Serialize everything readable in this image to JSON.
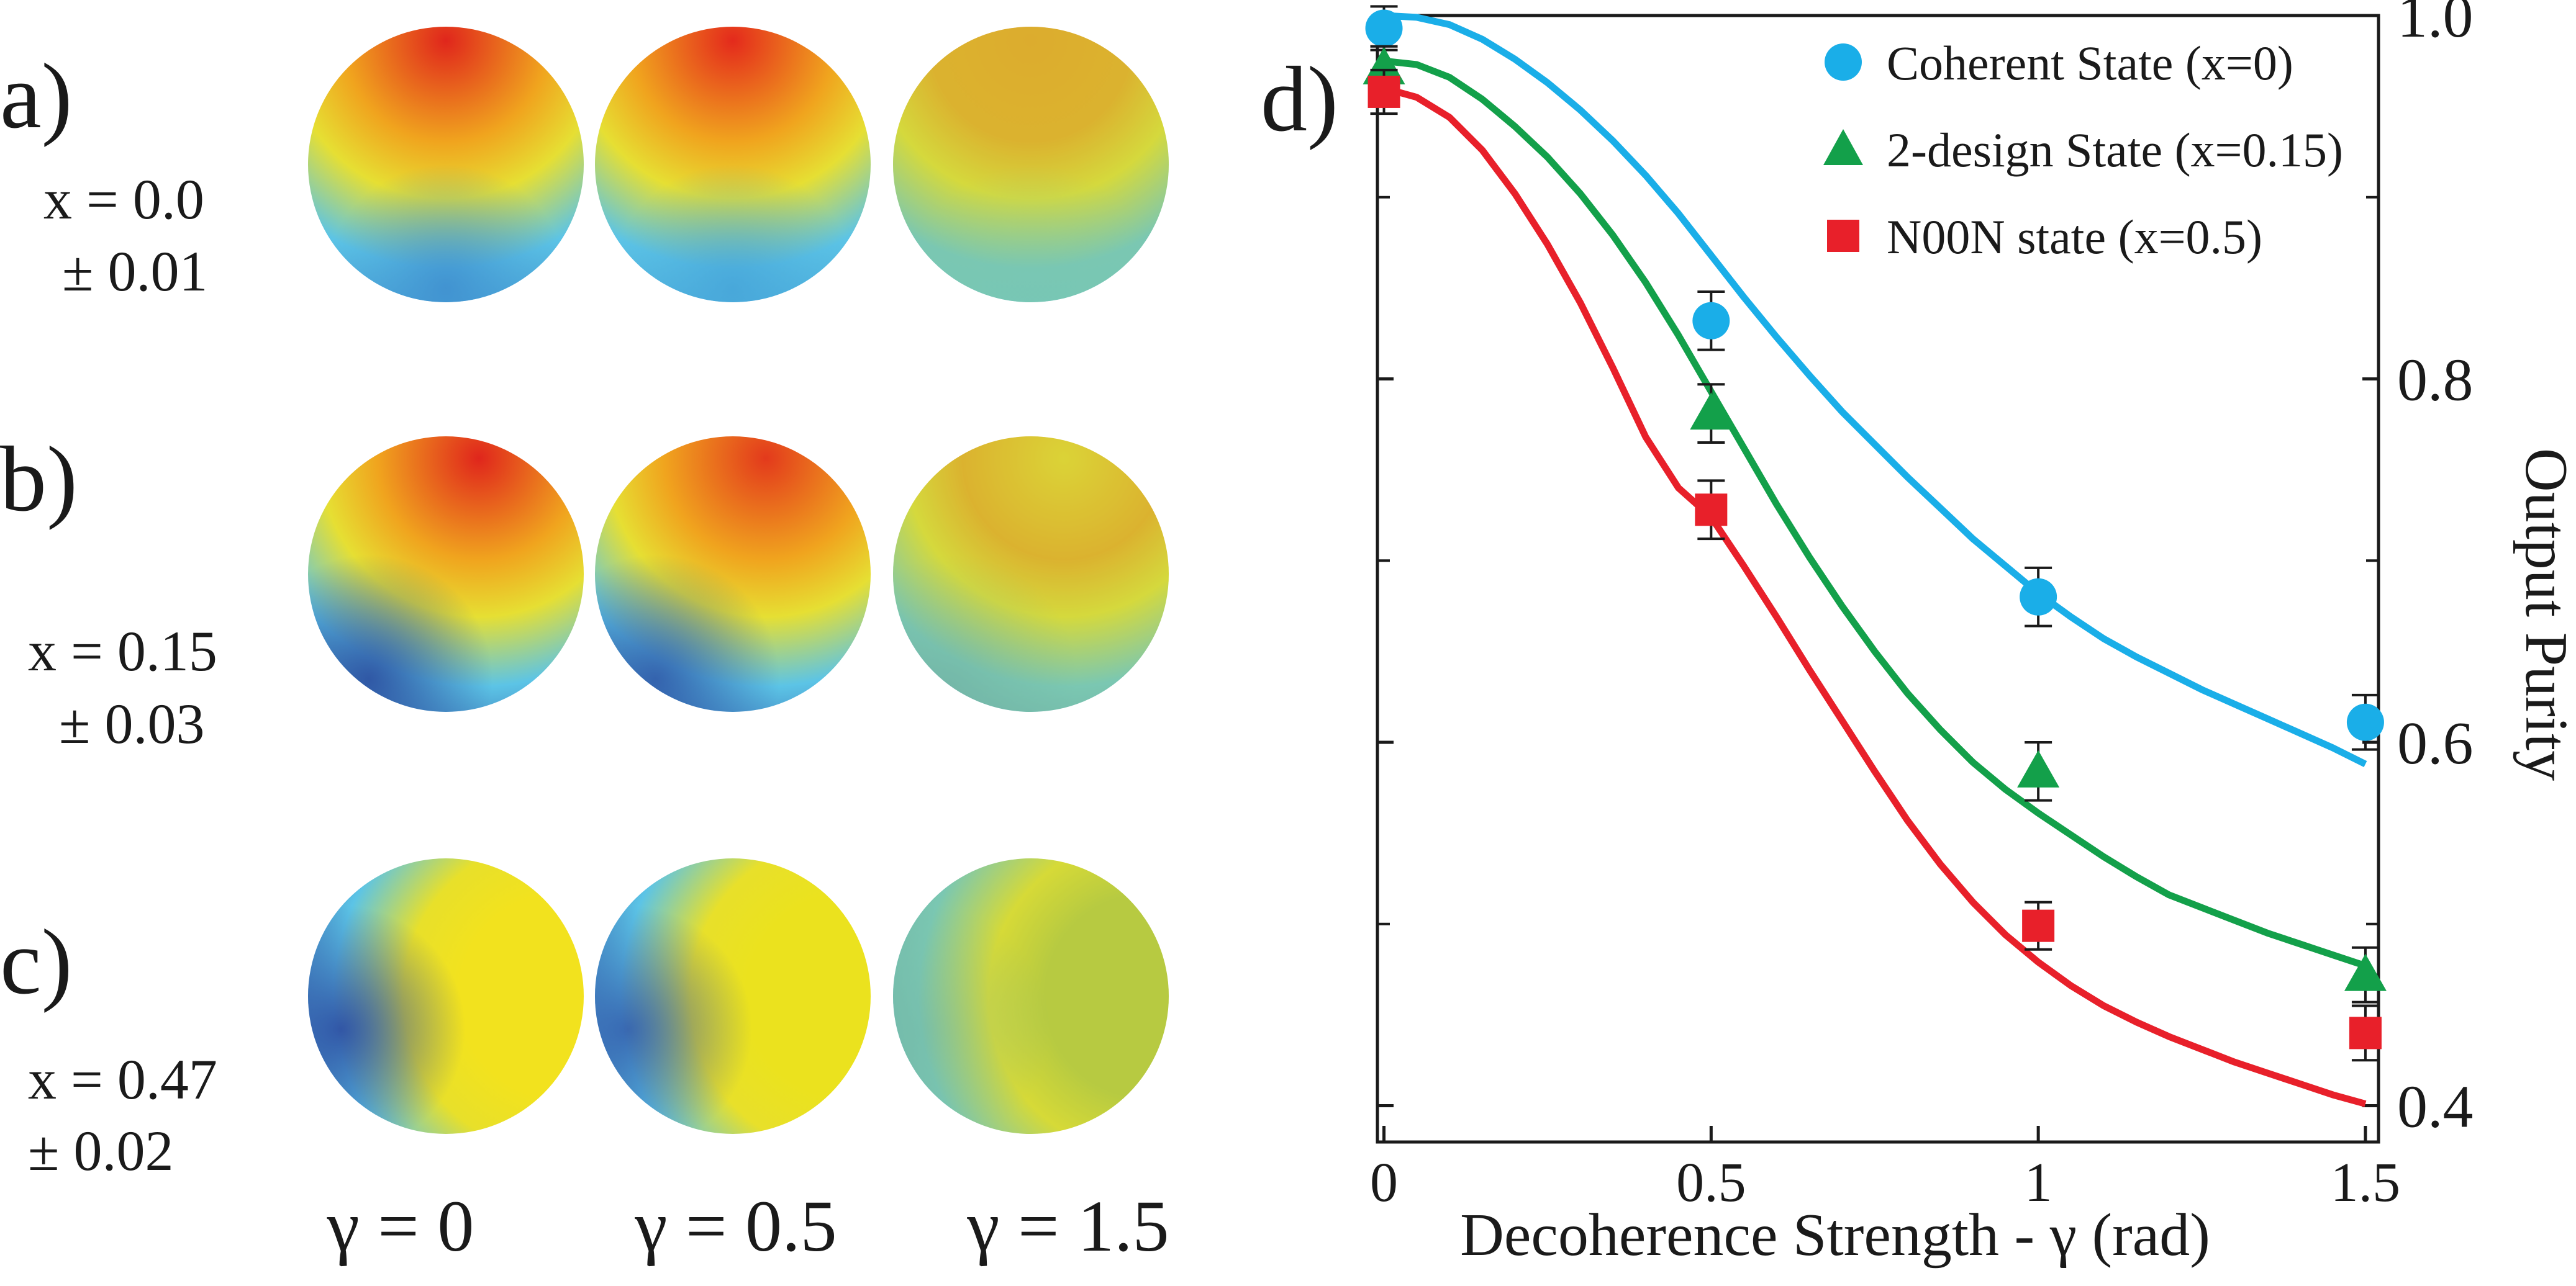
{
  "panels": {
    "a": {
      "label": "a)",
      "x_line": "x = 0.0",
      "err_line": "± 0.01"
    },
    "b": {
      "label": "b)",
      "x_line": "x = 0.15",
      "err_line": "± 0.03"
    },
    "c": {
      "label": "c)",
      "x_line": "x = 0.47",
      "err_line": "± 0.02"
    },
    "d": {
      "label": "d)"
    }
  },
  "gamma_columns": [
    "γ = 0",
    "γ = 0.5",
    "γ = 1.5"
  ],
  "spheres": [
    {
      "row": "a",
      "gamma": 0,
      "hot": "#e0261c",
      "cold": "#3f8fcf",
      "hot_dir": "top",
      "contrast": 1.0
    },
    {
      "row": "a",
      "gamma": 0.5,
      "hot": "#e42a1c",
      "cold": "#45a3d8",
      "hot_dir": "top",
      "contrast": 0.9
    },
    {
      "row": "a",
      "gamma": 1.5,
      "hot": "#f29a1c",
      "cold": "#55c2ee",
      "hot_dir": "top",
      "contrast": 0.45
    },
    {
      "row": "b",
      "gamma": 0,
      "hot": "#e0261c",
      "cold": "#2c4fa0",
      "hot_dir": "top-right",
      "contrast": 1.0
    },
    {
      "row": "b",
      "gamma": 0.5,
      "hot": "#e33a1c",
      "cold": "#2d52a4",
      "hot_dir": "top-right",
      "contrast": 0.9
    },
    {
      "row": "b",
      "gamma": 1.5,
      "hot": "#f0d62a",
      "cold": "#4a98cc",
      "hot_dir": "top-right",
      "contrast": 0.4
    },
    {
      "row": "c",
      "gamma": 0,
      "hot": "#f2e21e",
      "cold": "#2c4aa0",
      "hot_dir": "right",
      "contrast": 1.0
    },
    {
      "row": "c",
      "gamma": 0.5,
      "hot": "#ebe21e",
      "cold": "#2f52a6",
      "hot_dir": "right",
      "contrast": 0.9
    },
    {
      "row": "c",
      "gamma": 1.5,
      "hot": "#b8c83a",
      "cold": "#4aa0d2",
      "hot_dir": "right",
      "contrast": 0.4
    }
  ],
  "chart_data": {
    "type": "scatter",
    "xlabel": "Decoherence Strength - γ (rad)",
    "ylabel": "Output Purity",
    "xlim": [
      -0.01,
      1.52
    ],
    "ylim": [
      0.38,
      1.0
    ],
    "x_ticks": [
      0,
      0.5,
      1,
      1.5
    ],
    "x_tick_labels": [
      "0",
      "0.5",
      "1",
      "1.5"
    ],
    "y_ticks": [
      0.4,
      0.6,
      0.8,
      1.0
    ],
    "y_tick_labels": [
      "0.4",
      "0.6",
      "0.8",
      "1.0"
    ],
    "y_minor_ticks": [
      0.5,
      0.7,
      0.9
    ],
    "legend_position": "top-right",
    "series": [
      {
        "name": "Coherent State (x=0)",
        "color": "#1aaee8",
        "marker": "circle",
        "points": [
          {
            "x": 0,
            "y": 0.993,
            "err": 0.012
          },
          {
            "x": 0.5,
            "y": 0.832,
            "err": 0.016
          },
          {
            "x": 1,
            "y": 0.68,
            "err": 0.016
          },
          {
            "x": 1.5,
            "y": 0.611,
            "err": 0.015
          }
        ],
        "curve": [
          [
            0,
            1.0
          ],
          [
            0.05,
            0.999
          ],
          [
            0.1,
            0.995
          ],
          [
            0.15,
            0.987
          ],
          [
            0.2,
            0.976
          ],
          [
            0.25,
            0.963
          ],
          [
            0.3,
            0.948
          ],
          [
            0.35,
            0.931
          ],
          [
            0.4,
            0.912
          ],
          [
            0.45,
            0.891
          ],
          [
            0.5,
            0.868
          ],
          [
            0.55,
            0.845
          ],
          [
            0.6,
            0.823
          ],
          [
            0.65,
            0.802
          ],
          [
            0.7,
            0.782
          ],
          [
            0.75,
            0.764
          ],
          [
            0.8,
            0.746
          ],
          [
            0.85,
            0.729
          ],
          [
            0.9,
            0.712
          ],
          [
            0.95,
            0.697
          ],
          [
            1.0,
            0.682
          ],
          [
            1.05,
            0.669
          ],
          [
            1.1,
            0.657
          ],
          [
            1.15,
            0.647
          ],
          [
            1.2,
            0.638
          ],
          [
            1.25,
            0.629
          ],
          [
            1.3,
            0.621
          ],
          [
            1.35,
            0.613
          ],
          [
            1.4,
            0.605
          ],
          [
            1.45,
            0.597
          ],
          [
            1.5,
            0.588
          ]
        ]
      },
      {
        "name": "2-design State (x=0.15)",
        "color": "#13a04a",
        "marker": "triangle",
        "points": [
          {
            "x": 0,
            "y": 0.971,
            "err": 0.012
          },
          {
            "x": 0.5,
            "y": 0.781,
            "err": 0.016
          },
          {
            "x": 1,
            "y": 0.584,
            "err": 0.016
          },
          {
            "x": 1.5,
            "y": 0.472,
            "err": 0.015
          }
        ],
        "curve": [
          [
            0,
            0.975
          ],
          [
            0.05,
            0.973
          ],
          [
            0.1,
            0.966
          ],
          [
            0.15,
            0.954
          ],
          [
            0.2,
            0.939
          ],
          [
            0.25,
            0.922
          ],
          [
            0.3,
            0.902
          ],
          [
            0.35,
            0.879
          ],
          [
            0.4,
            0.853
          ],
          [
            0.45,
            0.824
          ],
          [
            0.5,
            0.793
          ],
          [
            0.55,
            0.762
          ],
          [
            0.6,
            0.731
          ],
          [
            0.65,
            0.702
          ],
          [
            0.7,
            0.675
          ],
          [
            0.75,
            0.65
          ],
          [
            0.8,
            0.627
          ],
          [
            0.85,
            0.607
          ],
          [
            0.9,
            0.589
          ],
          [
            0.95,
            0.574
          ],
          [
            1.0,
            0.561
          ],
          [
            1.05,
            0.549
          ],
          [
            1.1,
            0.537
          ],
          [
            1.15,
            0.526
          ],
          [
            1.2,
            0.516
          ],
          [
            1.25,
            0.509
          ],
          [
            1.3,
            0.502
          ],
          [
            1.35,
            0.495
          ],
          [
            1.4,
            0.489
          ],
          [
            1.45,
            0.483
          ],
          [
            1.5,
            0.477
          ]
        ]
      },
      {
        "name": "N00N state (x=0.5)",
        "color": "#e8202a",
        "marker": "square",
        "points": [
          {
            "x": 0,
            "y": 0.958,
            "err": 0.012
          },
          {
            "x": 0.5,
            "y": 0.728,
            "err": 0.016
          },
          {
            "x": 1,
            "y": 0.499,
            "err": 0.013
          },
          {
            "x": 1.5,
            "y": 0.44,
            "err": 0.015
          }
        ],
        "curve": [
          [
            0,
            0.96
          ],
          [
            0.05,
            0.955
          ],
          [
            0.1,
            0.944
          ],
          [
            0.15,
            0.926
          ],
          [
            0.2,
            0.902
          ],
          [
            0.25,
            0.874
          ],
          [
            0.3,
            0.842
          ],
          [
            0.35,
            0.806
          ],
          [
            0.4,
            0.768
          ],
          [
            0.45,
            0.74
          ],
          [
            0.5,
            0.724
          ],
          [
            0.55,
            0.697
          ],
          [
            0.6,
            0.669
          ],
          [
            0.65,
            0.64
          ],
          [
            0.7,
            0.612
          ],
          [
            0.75,
            0.584
          ],
          [
            0.8,
            0.557
          ],
          [
            0.85,
            0.533
          ],
          [
            0.9,
            0.512
          ],
          [
            0.95,
            0.494
          ],
          [
            1.0,
            0.479
          ],
          [
            1.05,
            0.466
          ],
          [
            1.1,
            0.455
          ],
          [
            1.15,
            0.446
          ],
          [
            1.2,
            0.438
          ],
          [
            1.25,
            0.431
          ],
          [
            1.3,
            0.424
          ],
          [
            1.35,
            0.418
          ],
          [
            1.4,
            0.412
          ],
          [
            1.45,
            0.406
          ],
          [
            1.5,
            0.401
          ]
        ]
      }
    ]
  }
}
